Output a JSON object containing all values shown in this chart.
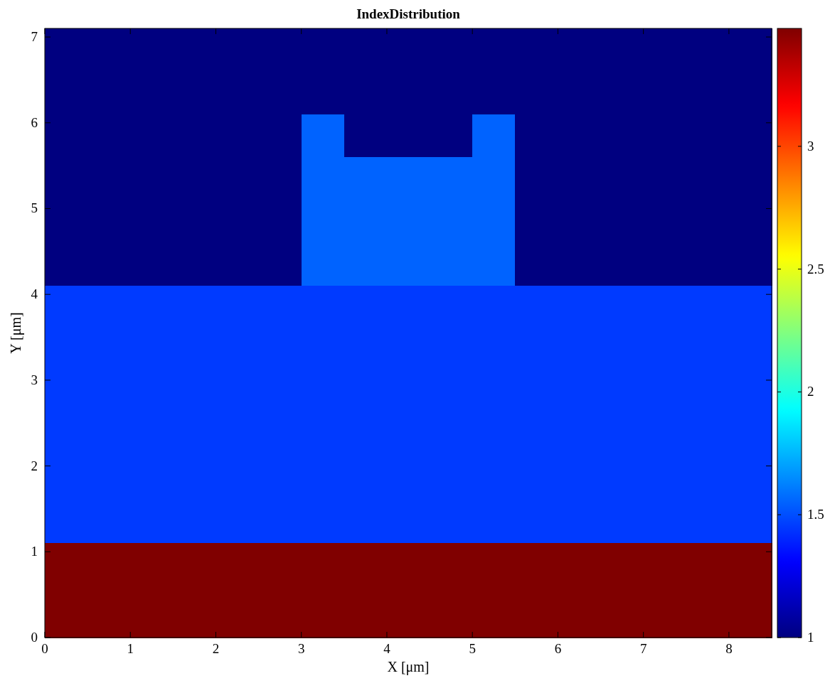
{
  "chart_data": {
    "type": "heatmap",
    "title": "IndexDistribution",
    "xlabel": "X [μm]",
    "ylabel": "Y [μm]",
    "x": [
      0.25,
      0.75,
      1.25,
      1.75,
      2.25,
      2.75,
      3.25,
      3.75,
      4.25,
      4.75,
      5.25,
      5.75,
      6.25,
      6.75,
      7.25,
      7.75,
      8.25
    ],
    "y": [
      7.05,
      6.95,
      6.85,
      6.75,
      6.65,
      6.55,
      6.45,
      6.35,
      6.25,
      6.15,
      6.05,
      5.95,
      5.85,
      5.75,
      5.65,
      5.55,
      5.45,
      5.35,
      5.25,
      5.15,
      5.05,
      4.95,
      4.85,
      4.75,
      4.65,
      4.55,
      4.45,
      4.35,
      4.25,
      4.15,
      4.05,
      3.95,
      3.85,
      3.75,
      3.65,
      3.55,
      3.45,
      3.35,
      3.25,
      3.15,
      3.05,
      2.95,
      2.85,
      2.75,
      2.65,
      2.55,
      2.45,
      2.35,
      2.25,
      2.15,
      2.05,
      1.95,
      1.85,
      1.75,
      1.65,
      1.55,
      1.45,
      1.35,
      1.25,
      1.15,
      1.05,
      0.95,
      0.85,
      0.75,
      0.65,
      0.55,
      0.45,
      0.35,
      0.25,
      0.15,
      0.05
    ],
    "cells": [
      [
        1,
        1,
        1,
        1,
        1,
        1,
        1,
        1,
        1,
        1,
        1,
        1,
        1,
        1,
        1,
        1,
        1
      ],
      [
        1,
        1,
        1,
        1,
        1,
        1,
        1,
        1,
        1,
        1,
        1,
        1,
        1,
        1,
        1,
        1,
        1
      ],
      [
        1,
        1,
        1,
        1,
        1,
        1,
        1,
        1,
        1,
        1,
        1,
        1,
        1,
        1,
        1,
        1,
        1
      ],
      [
        1,
        1,
        1,
        1,
        1,
        1,
        1,
        1,
        1,
        1,
        1,
        1,
        1,
        1,
        1,
        1,
        1
      ],
      [
        1,
        1,
        1,
        1,
        1,
        1,
        1,
        1,
        1,
        1,
        1,
        1,
        1,
        1,
        1,
        1,
        1
      ],
      [
        1,
        1,
        1,
        1,
        1,
        1,
        1,
        1,
        1,
        1,
        1,
        1,
        1,
        1,
        1,
        1,
        1
      ],
      [
        1,
        1,
        1,
        1,
        1,
        1,
        1,
        1,
        1,
        1,
        1,
        1,
        1,
        1,
        1,
        1,
        1
      ],
      [
        1,
        1,
        1,
        1,
        1,
        1,
        1,
        1,
        1,
        1,
        1,
        1,
        1,
        1,
        1,
        1,
        1
      ],
      [
        1,
        1,
        1,
        1,
        1,
        1,
        1,
        1,
        1,
        1,
        1,
        1,
        1,
        1,
        1,
        1,
        1
      ],
      [
        1,
        1,
        1,
        1,
        1,
        1,
        1,
        1,
        1,
        1,
        1,
        1,
        1,
        1,
        1,
        1,
        1
      ],
      [
        1,
        1,
        1,
        1,
        1,
        1,
        1.55,
        1,
        1,
        1,
        1.55,
        1,
        1,
        1,
        1,
        1,
        1
      ],
      [
        1,
        1,
        1,
        1,
        1,
        1,
        1.55,
        1,
        1,
        1,
        1.55,
        1,
        1,
        1,
        1,
        1,
        1
      ],
      [
        1,
        1,
        1,
        1,
        1,
        1,
        1.55,
        1,
        1,
        1,
        1.55,
        1,
        1,
        1,
        1,
        1,
        1
      ],
      [
        1,
        1,
        1,
        1,
        1,
        1,
        1.55,
        1,
        1,
        1,
        1.55,
        1,
        1,
        1,
        1,
        1,
        1
      ],
      [
        1,
        1,
        1,
        1,
        1,
        1,
        1.55,
        1,
        1,
        1,
        1.55,
        1,
        1,
        1,
        1,
        1,
        1
      ],
      [
        1,
        1,
        1,
        1,
        1,
        1,
        1.55,
        1.55,
        1.55,
        1.55,
        1.55,
        1,
        1,
        1,
        1,
        1,
        1
      ],
      [
        1,
        1,
        1,
        1,
        1,
        1,
        1.55,
        1.55,
        1.55,
        1.55,
        1.55,
        1,
        1,
        1,
        1,
        1,
        1
      ],
      [
        1,
        1,
        1,
        1,
        1,
        1,
        1.55,
        1.55,
        1.55,
        1.55,
        1.55,
        1,
        1,
        1,
        1,
        1,
        1
      ],
      [
        1,
        1,
        1,
        1,
        1,
        1,
        1.55,
        1.55,
        1.55,
        1.55,
        1.55,
        1,
        1,
        1,
        1,
        1,
        1
      ],
      [
        1,
        1,
        1,
        1,
        1,
        1,
        1.55,
        1.55,
        1.55,
        1.55,
        1.55,
        1,
        1,
        1,
        1,
        1,
        1
      ],
      [
        1,
        1,
        1,
        1,
        1,
        1,
        1.55,
        1.55,
        1.55,
        1.55,
        1.55,
        1,
        1,
        1,
        1,
        1,
        1
      ],
      [
        1,
        1,
        1,
        1,
        1,
        1,
        1.55,
        1.55,
        1.55,
        1.55,
        1.55,
        1,
        1,
        1,
        1,
        1,
        1
      ],
      [
        1,
        1,
        1,
        1,
        1,
        1,
        1.55,
        1.55,
        1.55,
        1.55,
        1.55,
        1,
        1,
        1,
        1,
        1,
        1
      ],
      [
        1,
        1,
        1,
        1,
        1,
        1,
        1.55,
        1.55,
        1.55,
        1.55,
        1.55,
        1,
        1,
        1,
        1,
        1,
        1
      ],
      [
        1,
        1,
        1,
        1,
        1,
        1,
        1.55,
        1.55,
        1.55,
        1.55,
        1.55,
        1,
        1,
        1,
        1,
        1,
        1
      ],
      [
        1,
        1,
        1,
        1,
        1,
        1,
        1.55,
        1.55,
        1.55,
        1.55,
        1.55,
        1,
        1,
        1,
        1,
        1,
        1
      ],
      [
        1,
        1,
        1,
        1,
        1,
        1,
        1.55,
        1.55,
        1.55,
        1.55,
        1.55,
        1,
        1,
        1,
        1,
        1,
        1
      ],
      [
        1,
        1,
        1,
        1,
        1,
        1,
        1.55,
        1.55,
        1.55,
        1.55,
        1.55,
        1,
        1,
        1,
        1,
        1,
        1
      ],
      [
        1,
        1,
        1,
        1,
        1,
        1,
        1.55,
        1.55,
        1.55,
        1.55,
        1.55,
        1,
        1,
        1,
        1,
        1,
        1
      ],
      [
        1,
        1,
        1,
        1,
        1,
        1,
        1.55,
        1.55,
        1.55,
        1.55,
        1.55,
        1,
        1,
        1,
        1,
        1,
        1
      ],
      [
        1.45,
        1.45,
        1.45,
        1.45,
        1.45,
        1.45,
        1.45,
        1.45,
        1.45,
        1.45,
        1.45,
        1.45,
        1.45,
        1.45,
        1.45,
        1.45,
        1.45
      ],
      [
        1.45,
        1.45,
        1.45,
        1.45,
        1.45,
        1.45,
        1.45,
        1.45,
        1.45,
        1.45,
        1.45,
        1.45,
        1.45,
        1.45,
        1.45,
        1.45,
        1.45
      ],
      [
        1.45,
        1.45,
        1.45,
        1.45,
        1.45,
        1.45,
        1.45,
        1.45,
        1.45,
        1.45,
        1.45,
        1.45,
        1.45,
        1.45,
        1.45,
        1.45,
        1.45
      ],
      [
        1.45,
        1.45,
        1.45,
        1.45,
        1.45,
        1.45,
        1.45,
        1.45,
        1.45,
        1.45,
        1.45,
        1.45,
        1.45,
        1.45,
        1.45,
        1.45,
        1.45
      ],
      [
        1.45,
        1.45,
        1.45,
        1.45,
        1.45,
        1.45,
        1.45,
        1.45,
        1.45,
        1.45,
        1.45,
        1.45,
        1.45,
        1.45,
        1.45,
        1.45,
        1.45
      ],
      [
        1.45,
        1.45,
        1.45,
        1.45,
        1.45,
        1.45,
        1.45,
        1.45,
        1.45,
        1.45,
        1.45,
        1.45,
        1.45,
        1.45,
        1.45,
        1.45,
        1.45
      ],
      [
        1.45,
        1.45,
        1.45,
        1.45,
        1.45,
        1.45,
        1.45,
        1.45,
        1.45,
        1.45,
        1.45,
        1.45,
        1.45,
        1.45,
        1.45,
        1.45,
        1.45
      ],
      [
        1.45,
        1.45,
        1.45,
        1.45,
        1.45,
        1.45,
        1.45,
        1.45,
        1.45,
        1.45,
        1.45,
        1.45,
        1.45,
        1.45,
        1.45,
        1.45,
        1.45
      ],
      [
        1.45,
        1.45,
        1.45,
        1.45,
        1.45,
        1.45,
        1.45,
        1.45,
        1.45,
        1.45,
        1.45,
        1.45,
        1.45,
        1.45,
        1.45,
        1.45,
        1.45
      ],
      [
        1.45,
        1.45,
        1.45,
        1.45,
        1.45,
        1.45,
        1.45,
        1.45,
        1.45,
        1.45,
        1.45,
        1.45,
        1.45,
        1.45,
        1.45,
        1.45,
        1.45
      ],
      [
        1.45,
        1.45,
        1.45,
        1.45,
        1.45,
        1.45,
        1.45,
        1.45,
        1.45,
        1.45,
        1.45,
        1.45,
        1.45,
        1.45,
        1.45,
        1.45,
        1.45
      ],
      [
        1.45,
        1.45,
        1.45,
        1.45,
        1.45,
        1.45,
        1.45,
        1.45,
        1.45,
        1.45,
        1.45,
        1.45,
        1.45,
        1.45,
        1.45,
        1.45,
        1.45
      ],
      [
        1.45,
        1.45,
        1.45,
        1.45,
        1.45,
        1.45,
        1.45,
        1.45,
        1.45,
        1.45,
        1.45,
        1.45,
        1.45,
        1.45,
        1.45,
        1.45,
        1.45
      ],
      [
        1.45,
        1.45,
        1.45,
        1.45,
        1.45,
        1.45,
        1.45,
        1.45,
        1.45,
        1.45,
        1.45,
        1.45,
        1.45,
        1.45,
        1.45,
        1.45,
        1.45
      ],
      [
        1.45,
        1.45,
        1.45,
        1.45,
        1.45,
        1.45,
        1.45,
        1.45,
        1.45,
        1.45,
        1.45,
        1.45,
        1.45,
        1.45,
        1.45,
        1.45,
        1.45
      ],
      [
        1.45,
        1.45,
        1.45,
        1.45,
        1.45,
        1.45,
        1.45,
        1.45,
        1.45,
        1.45,
        1.45,
        1.45,
        1.45,
        1.45,
        1.45,
        1.45,
        1.45
      ],
      [
        1.45,
        1.45,
        1.45,
        1.45,
        1.45,
        1.45,
        1.45,
        1.45,
        1.45,
        1.45,
        1.45,
        1.45,
        1.45,
        1.45,
        1.45,
        1.45,
        1.45
      ],
      [
        1.45,
        1.45,
        1.45,
        1.45,
        1.45,
        1.45,
        1.45,
        1.45,
        1.45,
        1.45,
        1.45,
        1.45,
        1.45,
        1.45,
        1.45,
        1.45,
        1.45
      ],
      [
        1.45,
        1.45,
        1.45,
        1.45,
        1.45,
        1.45,
        1.45,
        1.45,
        1.45,
        1.45,
        1.45,
        1.45,
        1.45,
        1.45,
        1.45,
        1.45,
        1.45
      ],
      [
        1.45,
        1.45,
        1.45,
        1.45,
        1.45,
        1.45,
        1.45,
        1.45,
        1.45,
        1.45,
        1.45,
        1.45,
        1.45,
        1.45,
        1.45,
        1.45,
        1.45
      ],
      [
        1.45,
        1.45,
        1.45,
        1.45,
        1.45,
        1.45,
        1.45,
        1.45,
        1.45,
        1.45,
        1.45,
        1.45,
        1.45,
        1.45,
        1.45,
        1.45,
        1.45
      ],
      [
        1.45,
        1.45,
        1.45,
        1.45,
        1.45,
        1.45,
        1.45,
        1.45,
        1.45,
        1.45,
        1.45,
        1.45,
        1.45,
        1.45,
        1.45,
        1.45,
        1.45
      ],
      [
        1.45,
        1.45,
        1.45,
        1.45,
        1.45,
        1.45,
        1.45,
        1.45,
        1.45,
        1.45,
        1.45,
        1.45,
        1.45,
        1.45,
        1.45,
        1.45,
        1.45
      ],
      [
        1.45,
        1.45,
        1.45,
        1.45,
        1.45,
        1.45,
        1.45,
        1.45,
        1.45,
        1.45,
        1.45,
        1.45,
        1.45,
        1.45,
        1.45,
        1.45,
        1.45
      ],
      [
        1.45,
        1.45,
        1.45,
        1.45,
        1.45,
        1.45,
        1.45,
        1.45,
        1.45,
        1.45,
        1.45,
        1.45,
        1.45,
        1.45,
        1.45,
        1.45,
        1.45
      ],
      [
        1.45,
        1.45,
        1.45,
        1.45,
        1.45,
        1.45,
        1.45,
        1.45,
        1.45,
        1.45,
        1.45,
        1.45,
        1.45,
        1.45,
        1.45,
        1.45,
        1.45
      ],
      [
        1.45,
        1.45,
        1.45,
        1.45,
        1.45,
        1.45,
        1.45,
        1.45,
        1.45,
        1.45,
        1.45,
        1.45,
        1.45,
        1.45,
        1.45,
        1.45,
        1.45
      ],
      [
        1.45,
        1.45,
        1.45,
        1.45,
        1.45,
        1.45,
        1.45,
        1.45,
        1.45,
        1.45,
        1.45,
        1.45,
        1.45,
        1.45,
        1.45,
        1.45,
        1.45
      ],
      [
        1.45,
        1.45,
        1.45,
        1.45,
        1.45,
        1.45,
        1.45,
        1.45,
        1.45,
        1.45,
        1.45,
        1.45,
        1.45,
        1.45,
        1.45,
        1.45,
        1.45
      ],
      [
        1.45,
        1.45,
        1.45,
        1.45,
        1.45,
        1.45,
        1.45,
        1.45,
        1.45,
        1.45,
        1.45,
        1.45,
        1.45,
        1.45,
        1.45,
        1.45,
        1.45
      ],
      [
        3.48,
        3.48,
        3.48,
        3.48,
        3.48,
        3.48,
        3.48,
        3.48,
        3.48,
        3.48,
        3.48,
        3.48,
        3.48,
        3.48,
        3.48,
        3.48,
        3.48
      ],
      [
        3.48,
        3.48,
        3.48,
        3.48,
        3.48,
        3.48,
        3.48,
        3.48,
        3.48,
        3.48,
        3.48,
        3.48,
        3.48,
        3.48,
        3.48,
        3.48,
        3.48
      ],
      [
        3.48,
        3.48,
        3.48,
        3.48,
        3.48,
        3.48,
        3.48,
        3.48,
        3.48,
        3.48,
        3.48,
        3.48,
        3.48,
        3.48,
        3.48,
        3.48,
        3.48
      ],
      [
        3.48,
        3.48,
        3.48,
        3.48,
        3.48,
        3.48,
        3.48,
        3.48,
        3.48,
        3.48,
        3.48,
        3.48,
        3.48,
        3.48,
        3.48,
        3.48,
        3.48
      ],
      [
        3.48,
        3.48,
        3.48,
        3.48,
        3.48,
        3.48,
        3.48,
        3.48,
        3.48,
        3.48,
        3.48,
        3.48,
        3.48,
        3.48,
        3.48,
        3.48,
        3.48
      ],
      [
        3.48,
        3.48,
        3.48,
        3.48,
        3.48,
        3.48,
        3.48,
        3.48,
        3.48,
        3.48,
        3.48,
        3.48,
        3.48,
        3.48,
        3.48,
        3.48,
        3.48
      ],
      [
        3.48,
        3.48,
        3.48,
        3.48,
        3.48,
        3.48,
        3.48,
        3.48,
        3.48,
        3.48,
        3.48,
        3.48,
        3.48,
        3.48,
        3.48,
        3.48,
        3.48
      ],
      [
        3.48,
        3.48,
        3.48,
        3.48,
        3.48,
        3.48,
        3.48,
        3.48,
        3.48,
        3.48,
        3.48,
        3.48,
        3.48,
        3.48,
        3.48,
        3.48,
        3.48
      ],
      [
        3.48,
        3.48,
        3.48,
        3.48,
        3.48,
        3.48,
        3.48,
        3.48,
        3.48,
        3.48,
        3.48,
        3.48,
        3.48,
        3.48,
        3.48,
        3.48,
        3.48
      ],
      [
        3.48,
        3.48,
        3.48,
        3.48,
        3.48,
        3.48,
        3.48,
        3.48,
        3.48,
        3.48,
        3.48,
        3.48,
        3.48,
        3.48,
        3.48,
        3.48,
        3.48
      ],
      [
        3.48,
        3.48,
        3.48,
        3.48,
        3.48,
        3.48,
        3.48,
        3.48,
        3.48,
        3.48,
        3.48,
        3.48,
        3.48,
        3.48,
        3.48,
        3.48,
        3.48
      ]
    ],
    "xlim": [
      0,
      8.5
    ],
    "xticks": [
      0,
      1,
      2,
      3,
      4,
      5,
      6,
      7,
      8
    ],
    "ylim": [
      0,
      7.1
    ],
    "yticks": [
      0,
      1,
      2,
      3,
      4,
      5,
      6,
      7
    ],
    "clim": [
      1,
      3.48
    ],
    "cticks": [
      1,
      1.5,
      2,
      2.5,
      3
    ]
  }
}
